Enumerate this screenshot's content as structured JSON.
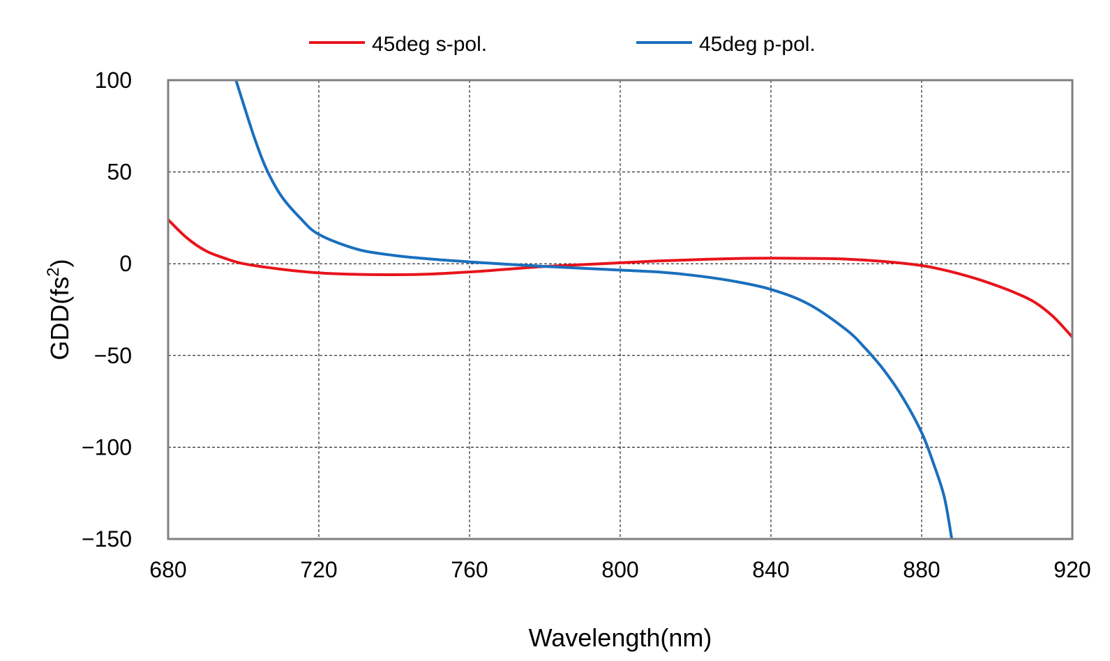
{
  "chart_data": {
    "type": "line",
    "xlabel": "Wavelength(nm)",
    "ylabel": "GDD(fs",
    "ylabel_sup": "2",
    "ylabel_close": ")",
    "xlim": [
      680,
      920
    ],
    "ylim": [
      -150,
      100
    ],
    "x_ticks": [
      680,
      720,
      760,
      800,
      840,
      880,
      920
    ],
    "x_tick_labels": [
      "680",
      "720",
      "760",
      "800",
      "840",
      "880",
      "920"
    ],
    "y_ticks": [
      100,
      50,
      0,
      -50,
      -100,
      -150
    ],
    "y_tick_labels": [
      "100",
      "50",
      "0",
      "−50",
      "−100",
      "−150"
    ],
    "grid": true,
    "legend_position": "top-center",
    "series": [
      {
        "name": "45deg s-pol.",
        "color": "#e8141c",
        "x": [
          680,
          685,
          690,
          695,
          700,
          710,
          720,
          730,
          740,
          750,
          760,
          770,
          780,
          790,
          800,
          810,
          820,
          830,
          840,
          850,
          860,
          870,
          880,
          885,
          890,
          895,
          900,
          905,
          910,
          915,
          920
        ],
        "y": [
          24,
          14,
          7,
          3,
          0,
          -3,
          -5,
          -5.8,
          -6,
          -5.6,
          -4.5,
          -3,
          -1.5,
          -0.5,
          0.5,
          1.5,
          2.2,
          2.8,
          3,
          2.9,
          2.5,
          1.2,
          -1,
          -3,
          -5.5,
          -8.5,
          -12,
          -16,
          -21,
          -29,
          -40
        ]
      },
      {
        "name": "45deg p-pol.",
        "color": "#1a6fbd",
        "x": [
          698,
          700,
          703,
          706,
          710,
          715,
          720,
          730,
          740,
          750,
          760,
          770,
          780,
          790,
          800,
          810,
          820,
          830,
          840,
          850,
          860,
          865,
          870,
          875,
          880,
          883,
          886,
          888
        ],
        "y": [
          100,
          87,
          68,
          52,
          37,
          25,
          16,
          8,
          4.5,
          2.5,
          1,
          -0.3,
          -1.5,
          -2.5,
          -3.5,
          -4.5,
          -6.5,
          -9.5,
          -14,
          -22,
          -36,
          -46,
          -58,
          -73,
          -92,
          -108,
          -127,
          -150
        ]
      }
    ]
  }
}
